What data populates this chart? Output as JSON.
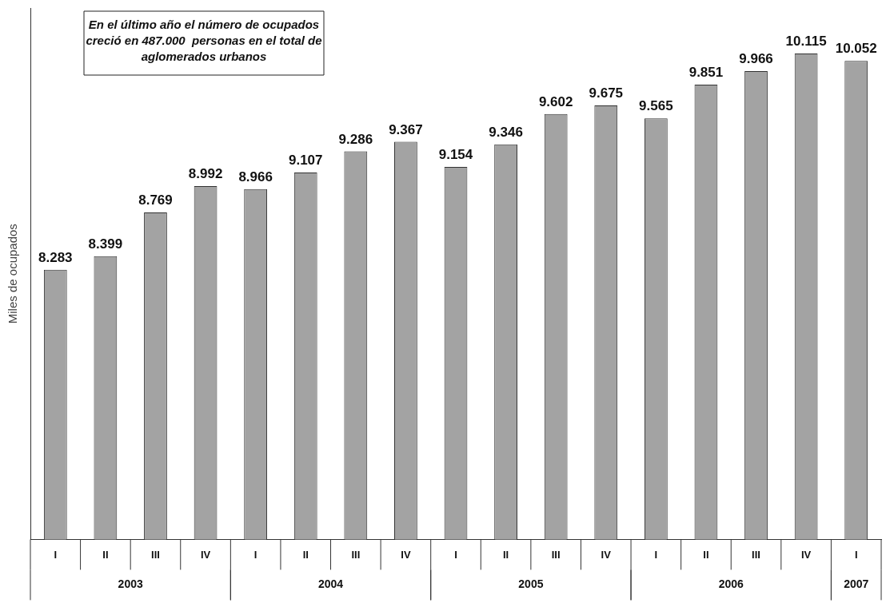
{
  "chart_data": {
    "type": "bar",
    "ylabel": "Miles de ocupados",
    "categories": [
      "I",
      "II",
      "III",
      "IV",
      "I",
      "II",
      "III",
      "IV",
      "I",
      "II",
      "III",
      "IV",
      "I",
      "II",
      "III",
      "IV",
      "I"
    ],
    "values": [
      8.283,
      8.399,
      8.769,
      8.992,
      8.966,
      9.107,
      9.286,
      9.367,
      9.154,
      9.346,
      9.602,
      9.675,
      9.565,
      9.851,
      9.966,
      10.115,
      10.052
    ],
    "color": "#a3a3a3",
    "ylim": [
      6,
      10.5
    ],
    "data_labels": true,
    "grid": false,
    "legend": false,
    "tick_labels": "x",
    "annotations": [
      "En el último año el número de ocupados creció en 487.000  personas en el total de aglomerados urbanos",
      "2003",
      "2004",
      "2005",
      "2006",
      "2007"
    ]
  }
}
